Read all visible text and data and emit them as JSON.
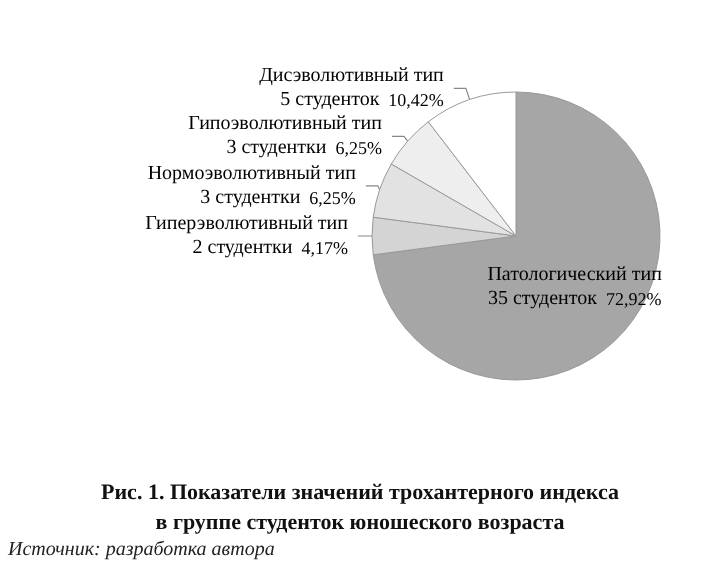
{
  "chart_data": {
    "type": "pie",
    "title": "Рис. 1. Показатели значений трохантерного индекса\nв группе студенток юношеского возраста",
    "categories": [
      "Патологический тип\n35 студенток",
      "Гиперэволютивный тип\n2 студентки",
      "Нормоэволютивный тип\n3 студентки",
      "Гипоэволютивный тип\n3 студентки",
      "Дисэволютивный тип\n5 студенток"
    ],
    "values": [
      72.92,
      4.17,
      6.25,
      6.25,
      10.42
    ],
    "value_labels": [
      "72,92%",
      "4,17%",
      "6,25%",
      "6,25%",
      "10,42%"
    ],
    "colors": [
      "#a6a6a6",
      "#d4d4d4",
      "#e2e2e2",
      "#eeeeee",
      "#ffffff"
    ],
    "annotations": [
      "Источник: разработка автора"
    ]
  }
}
